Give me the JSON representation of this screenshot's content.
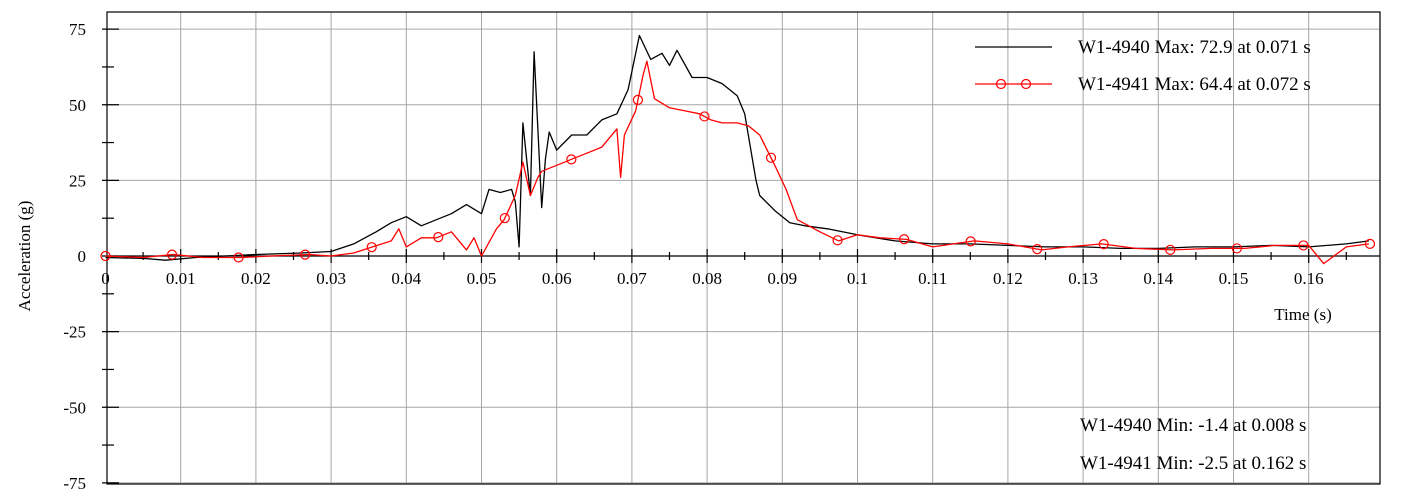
{
  "chart_data": {
    "type": "line",
    "title": "",
    "xlabel": "Time (s)",
    "ylabel": "Acceleration (g)",
    "xlim": [
      0,
      0.168
    ],
    "ylim": [
      -75,
      75
    ],
    "x_ticks": [
      0,
      0.01,
      0.02,
      0.03,
      0.04,
      0.05,
      0.06,
      0.07,
      0.08,
      0.09,
      0.1,
      0.11,
      0.12,
      0.13,
      0.14,
      0.15,
      0.16
    ],
    "x_tick_labels": [
      "0",
      "0.01",
      "0.02",
      "0.03",
      "0.04",
      "0.05",
      "0.06",
      "0.07",
      "0.08",
      "0.09",
      "0.1",
      "0.11",
      "0.12",
      "0.13",
      "0.14",
      "0.15",
      "0.16"
    ],
    "y_ticks": [
      75,
      50,
      25,
      0,
      -25,
      -50,
      -75
    ],
    "y_tick_labels": [
      "75",
      "50",
      "25",
      "0",
      "-25",
      "-50",
      "-75"
    ],
    "grid": true,
    "legend_position": "top-right",
    "series": [
      {
        "name": "W1-4940 Max: 72.9 at 0.071 s",
        "color": "#000000",
        "marker": "none",
        "x": [
          0,
          0.005,
          0.008,
          0.012,
          0.02,
          0.026,
          0.03,
          0.033,
          0.036,
          0.038,
          0.04,
          0.042,
          0.044,
          0.046,
          0.048,
          0.05,
          0.051,
          0.0525,
          0.054,
          0.0545,
          0.055,
          0.0555,
          0.0565,
          0.057,
          0.058,
          0.0585,
          0.059,
          0.06,
          0.062,
          0.064,
          0.066,
          0.068,
          0.0695,
          0.071,
          0.0725,
          0.074,
          0.075,
          0.076,
          0.078,
          0.08,
          0.082,
          0.084,
          0.085,
          0.0865,
          0.087,
          0.089,
          0.091,
          0.093,
          0.096,
          0.1,
          0.105,
          0.11,
          0.115,
          0.12,
          0.125,
          0.13,
          0.135,
          0.14,
          0.145,
          0.15,
          0.155,
          0.16,
          0.165,
          0.168
        ],
        "y": [
          -0.5,
          -0.8,
          -1.4,
          -0.5,
          0.5,
          1,
          1.5,
          4,
          8,
          11,
          13,
          10,
          12,
          14,
          17,
          14,
          22,
          21,
          22,
          18,
          3,
          44,
          20,
          67.5,
          16,
          32,
          41,
          35,
          40,
          40,
          45,
          47,
          55,
          72.9,
          65,
          67,
          63,
          68,
          59,
          59,
          57,
          53,
          47,
          25,
          20,
          15,
          11,
          10,
          9,
          7,
          5,
          4,
          4,
          3.5,
          3,
          3,
          2.5,
          2.5,
          3,
          3,
          3.5,
          3,
          4,
          5
        ]
      },
      {
        "name": "W1-4941 Max: 64.4 at 0.072 s",
        "color": "#ff0000",
        "marker": "circle",
        "x": [
          0,
          0.005,
          0.009,
          0.013,
          0.018,
          0.022,
          0.027,
          0.03,
          0.033,
          0.0355,
          0.038,
          0.039,
          0.04,
          0.042,
          0.044,
          0.046,
          0.048,
          0.049,
          0.05,
          0.052,
          0.053,
          0.0545,
          0.0555,
          0.0565,
          0.0575,
          0.058,
          0.06,
          0.062,
          0.064,
          0.066,
          0.068,
          0.0685,
          0.069,
          0.0705,
          0.0715,
          0.072,
          0.073,
          0.075,
          0.077,
          0.079,
          0.0805,
          0.082,
          0.084,
          0.0855,
          0.087,
          0.089,
          0.0905,
          0.092,
          0.095,
          0.0975,
          0.1,
          0.103,
          0.1065,
          0.11,
          0.1155,
          0.12,
          0.1245,
          0.128,
          0.1325,
          0.137,
          0.142,
          0.147,
          0.1515,
          0.1555,
          0.16,
          0.162,
          0.165,
          0.168
        ],
        "y": [
          0,
          -0.5,
          0.5,
          -0.5,
          -0.5,
          0,
          0.5,
          0,
          1,
          3,
          5,
          9,
          3,
          6,
          6,
          8,
          2,
          6,
          0,
          9,
          12,
          20,
          31,
          20,
          26,
          28,
          30,
          32,
          34,
          36,
          42,
          26,
          40,
          48,
          60,
          64.4,
          52,
          49,
          48,
          47,
          45,
          44,
          44,
          43,
          40,
          30,
          22,
          12,
          8,
          5,
          7,
          6,
          5.5,
          3,
          5,
          4,
          2,
          3,
          4,
          2.5,
          2,
          2.5,
          2.5,
          3.5,
          3.5,
          -2.5,
          3,
          4
        ]
      }
    ],
    "annotations": [
      "W1-4940 Min: -1.4 at 0.008 s",
      "W1-4941 Min: -2.5 at 0.162 s"
    ]
  }
}
